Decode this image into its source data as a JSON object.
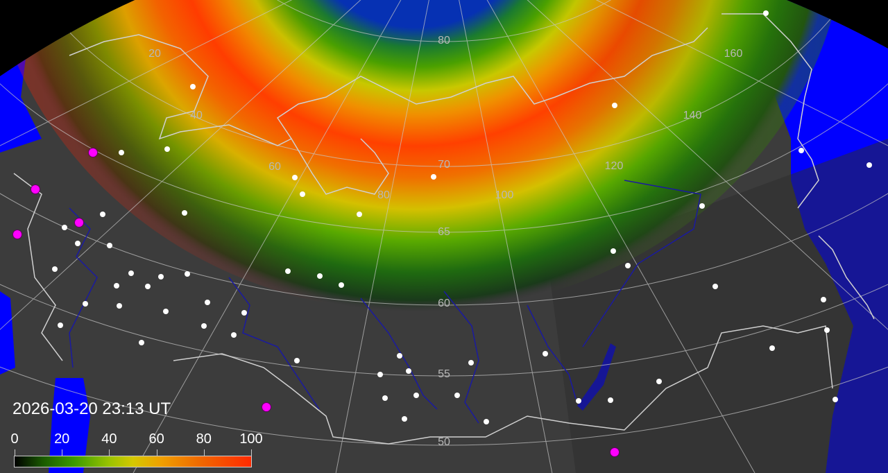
{
  "timestamp": "2026-03-20 23:13 UT",
  "legend": {
    "ticks": [
      "0",
      "20",
      "40",
      "60",
      "80",
      "100"
    ],
    "colors": [
      "#000000",
      "#1a5a00",
      "#3a9a00",
      "#9ac400",
      "#d4c800",
      "#f0a000",
      "#f06a00",
      "#ff2a00"
    ]
  },
  "grid": {
    "latitude_labels": [
      "80",
      "70",
      "65",
      "60",
      "55",
      "50"
    ],
    "longitude_labels": [
      "20",
      "40",
      "60",
      "80",
      "100",
      "120",
      "140",
      "160"
    ]
  },
  "colors": {
    "ocean": "#0000ff",
    "land": "#3c3c3c",
    "night_land": "#2f2f2f",
    "city": "#ffffff",
    "observer": "#ff00ff",
    "rivers": "#1a1aa0",
    "coast": "#cfcfcf"
  }
}
